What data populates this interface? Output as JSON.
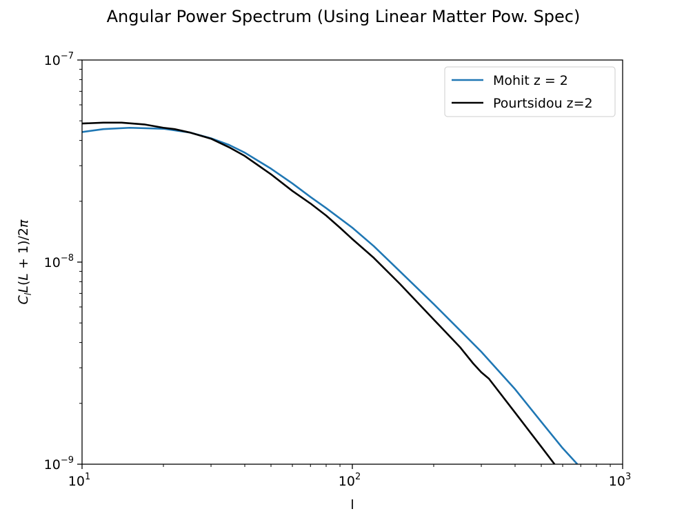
{
  "chart_data": {
    "type": "line",
    "title": "Angular Power Spectrum (Using Linear Matter Pow. Spec)",
    "xlabel": "l",
    "ylabel": "C_l L(L+1)/2π",
    "xscale": "log",
    "yscale": "log",
    "xlim": [
      10,
      1000
    ],
    "ylim": [
      1e-09,
      1e-07
    ],
    "x_ticks": [
      {
        "value": 10,
        "base": "10",
        "exp": "1"
      },
      {
        "value": 100,
        "base": "10",
        "exp": "2"
      },
      {
        "value": 1000,
        "base": "10",
        "exp": "3"
      }
    ],
    "y_ticks": [
      {
        "value": 1e-09,
        "base": "10",
        "exp": "−9"
      },
      {
        "value": 1e-08,
        "base": "10",
        "exp": "−8"
      },
      {
        "value": 1e-07,
        "base": "10",
        "exp": "−7"
      }
    ],
    "grid": false,
    "legend_position": "top-right",
    "series": [
      {
        "name": "Mohit z = 2",
        "color": "#1f77b4",
        "points": [
          [
            10,
            4.4e-08
          ],
          [
            12,
            4.55e-08
          ],
          [
            15,
            4.62e-08
          ],
          [
            20,
            4.57e-08
          ],
          [
            25,
            4.38e-08
          ],
          [
            30,
            4.1e-08
          ],
          [
            35,
            3.8e-08
          ],
          [
            40,
            3.48e-08
          ],
          [
            50,
            2.9e-08
          ],
          [
            60,
            2.45e-08
          ],
          [
            70,
            2.1e-08
          ],
          [
            80,
            1.85e-08
          ],
          [
            100,
            1.48e-08
          ],
          [
            120,
            1.2e-08
          ],
          [
            150,
            9e-09
          ],
          [
            200,
            6.2e-09
          ],
          [
            250,
            4.6e-09
          ],
          [
            300,
            3.6e-09
          ],
          [
            400,
            2.35e-09
          ],
          [
            500,
            1.62e-09
          ],
          [
            600,
            1.2e-09
          ],
          [
            680,
            1e-09
          ]
        ]
      },
      {
        "name": "Pourtsidou z=2",
        "color": "#000000",
        "points": [
          [
            10,
            4.85e-08
          ],
          [
            12,
            4.9e-08
          ],
          [
            14,
            4.9e-08
          ],
          [
            17,
            4.8e-08
          ],
          [
            20,
            4.62e-08
          ],
          [
            22,
            4.55e-08
          ],
          [
            25,
            4.38e-08
          ],
          [
            30,
            4.08e-08
          ],
          [
            35,
            3.7e-08
          ],
          [
            40,
            3.35e-08
          ],
          [
            50,
            2.72e-08
          ],
          [
            60,
            2.25e-08
          ],
          [
            70,
            1.95e-08
          ],
          [
            80,
            1.7e-08
          ],
          [
            90,
            1.48e-08
          ],
          [
            100,
            1.3e-08
          ],
          [
            120,
            1.05e-08
          ],
          [
            150,
            7.8e-09
          ],
          [
            200,
            5.2e-09
          ],
          [
            250,
            3.8e-09
          ],
          [
            280,
            3.15e-09
          ],
          [
            300,
            2.85e-09
          ],
          [
            320,
            2.65e-09
          ],
          [
            400,
            1.8e-09
          ],
          [
            500,
            1.22e-09
          ],
          [
            560,
            1e-09
          ]
        ]
      }
    ]
  }
}
